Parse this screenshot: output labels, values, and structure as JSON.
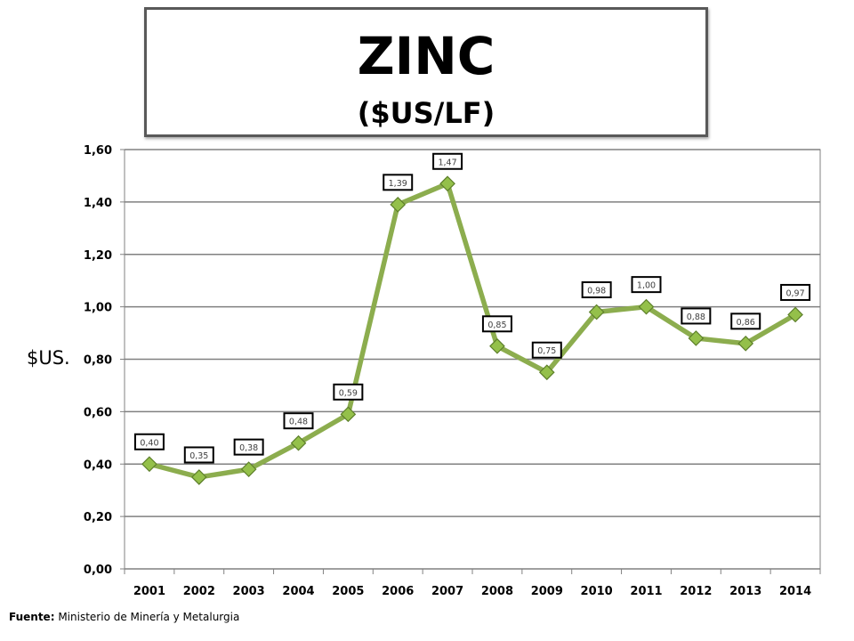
{
  "title": "ZINC",
  "subtitle": "($US/LF)",
  "source": {
    "label": "Fuente:",
    "text": "Ministerio de Minería y Metalurgia"
  },
  "colors": {
    "line": "#8cad4e",
    "marker": "#94c04a",
    "marker_edge": "#5d7f2a",
    "grid": "#808080"
  },
  "chart_data": {
    "type": "line",
    "categories": [
      "2001",
      "2002",
      "2003",
      "2004",
      "2005",
      "2006",
      "2007",
      "2008",
      "2009",
      "2010",
      "2011",
      "2012",
      "2013",
      "2014"
    ],
    "series": [
      {
        "values": [
          0.4,
          0.35,
          0.38,
          0.48,
          0.59,
          1.39,
          1.47,
          0.85,
          0.75,
          0.98,
          1.0,
          0.88,
          0.86,
          0.97
        ]
      }
    ],
    "data_labels": [
      "0,40",
      "0,35",
      "0,38",
      "0,48",
      "0,59",
      "1,39",
      "1,47",
      "0,85",
      "0,75",
      "0,98",
      "1,00",
      "0,88",
      "0,86",
      "0,97"
    ],
    "ylabel": "$US.",
    "ylim": [
      0,
      1.6
    ],
    "yticks": [
      "0,00",
      "0,20",
      "0,40",
      "0,60",
      "0,80",
      "1,00",
      "1,20",
      "1,40",
      "1,60"
    ],
    "grid": true,
    "marker": "diamond"
  }
}
